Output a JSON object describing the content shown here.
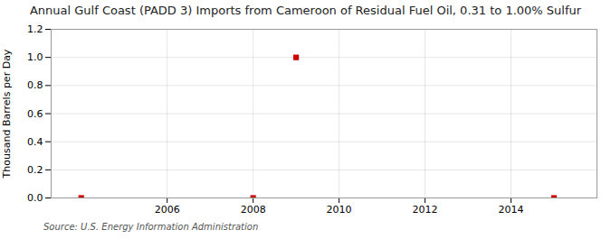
{
  "chart_data": {
    "type": "scatter",
    "title": "Annual Gulf Coast (PADD 3) Imports from Cameroon of Residual Fuel Oil, 0.31 to 1.00% Sulfur",
    "ylabel": "Thousand Barrels per Day",
    "source": "Source: U.S. Energy Information Administration",
    "x": [
      2004,
      2008,
      2009,
      2015
    ],
    "values": [
      0.0,
      0.0,
      1.0,
      0.0
    ],
    "color": "#cc0000",
    "marker": "square",
    "xlim": [
      2003.3,
      2016.0
    ],
    "xticks": [
      2006,
      2008,
      2010,
      2012,
      2014
    ],
    "ylim": [
      0.0,
      1.2
    ],
    "yticks": [
      {
        "value": 0.0,
        "label": "0.0"
      },
      0.2,
      0.4,
      0.6,
      0.8,
      {
        "value": 1.0,
        "label": "1.0"
      },
      1.2
    ],
    "grid": true
  }
}
